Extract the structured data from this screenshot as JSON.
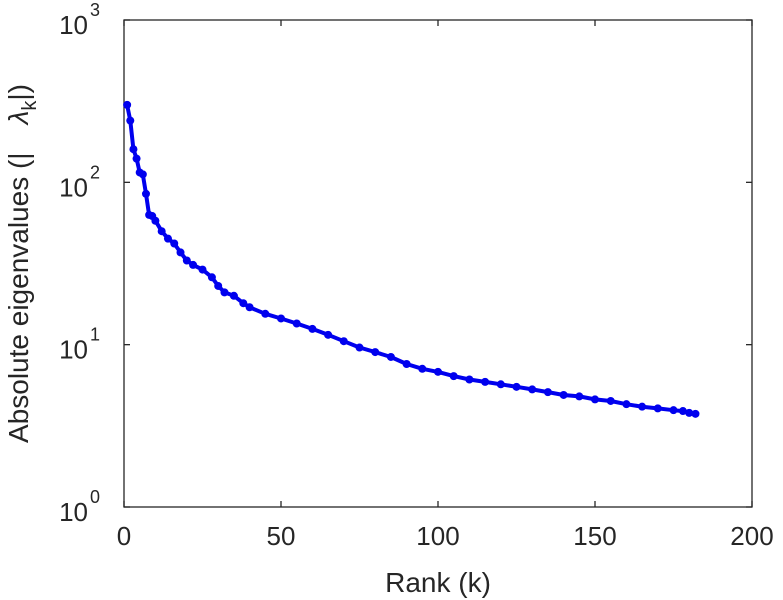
{
  "chart_data": {
    "type": "line",
    "title": "",
    "xlabel": "Rank (k)",
    "ylabel": "Absolute eigenvalues (|λₖ|)",
    "ylabel_main": "Absolute eigenvalues (|",
    "ylabel_lambda": "λ",
    "ylabel_sub": "k",
    "ylabel_close": "|)",
    "xlim": [
      0,
      200
    ],
    "ylim": [
      1,
      1000
    ],
    "yscale": "log",
    "grid": false,
    "legend": "none",
    "x_ticks": [
      0,
      50,
      100,
      150,
      200
    ],
    "x_tick_labels": [
      "0",
      "50",
      "100",
      "150",
      "200"
    ],
    "y_ticks": [
      1,
      10,
      100,
      1000
    ],
    "y_tick_base": "10",
    "y_tick_exponents": [
      "0",
      "1",
      "2",
      "3"
    ],
    "series": [
      {
        "color": "#0000ee",
        "marker": "circle",
        "x": [
          1,
          2,
          3,
          4,
          5,
          6,
          7,
          8,
          9,
          10,
          12,
          14,
          16,
          18,
          20,
          22,
          25,
          28,
          30,
          32,
          35,
          38,
          40,
          45,
          50,
          55,
          60,
          65,
          70,
          75,
          80,
          85,
          90,
          95,
          100,
          105,
          110,
          115,
          120,
          125,
          130,
          135,
          140,
          145,
          150,
          155,
          160,
          165,
          170,
          175,
          178,
          180,
          182
        ],
        "y": [
          300,
          240,
          160,
          140,
          115,
          112,
          85,
          63,
          62,
          58,
          50,
          45,
          42,
          37,
          33,
          31,
          29,
          26,
          23,
          21,
          20,
          18,
          17,
          15.5,
          14.5,
          13.5,
          12.5,
          11.5,
          10.5,
          9.6,
          9.0,
          8.4,
          7.6,
          7.1,
          6.8,
          6.4,
          6.1,
          5.9,
          5.7,
          5.5,
          5.3,
          5.1,
          4.9,
          4.8,
          4.6,
          4.5,
          4.3,
          4.15,
          4.05,
          3.95,
          3.9,
          3.8,
          3.75
        ]
      }
    ]
  }
}
